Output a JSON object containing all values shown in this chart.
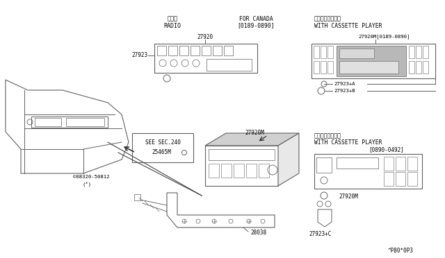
{
  "bg_color": "#ffffff",
  "lc": "#606060",
  "tc": "#000000",
  "title_bottom": "^P80*0P3",
  "labels": {
    "radio_jp": "ラジオ",
    "radio_en": "RADIO",
    "for_canada": "FOR CANADA",
    "canada_date": "[0189-0890]",
    "cassette_jp1": "カセット付ラジオ",
    "cassette_en1": "WITH CASSETTE PLAYER",
    "cassette_jp2": "カセット付ラジオ",
    "cassette_en2": "WITH CASSETTE PLAYER",
    "date_bot": "[0890-0492]",
    "part_27920": "27920",
    "part_27923": "27923",
    "part_27920M_top": "27920M[0189-0890]",
    "part_27923A": "27923+A",
    "part_27923B": "27923+B",
    "part_27920M_mid": "27920M",
    "part_27920M_bot": "27920M",
    "part_27923C": "27923+C",
    "part_25465M": "25465M",
    "part_08320": "©08320-50812",
    "part_08320b": "(⁴)",
    "part_28038": "28038",
    "see_sec": "SEE SEC.240"
  }
}
